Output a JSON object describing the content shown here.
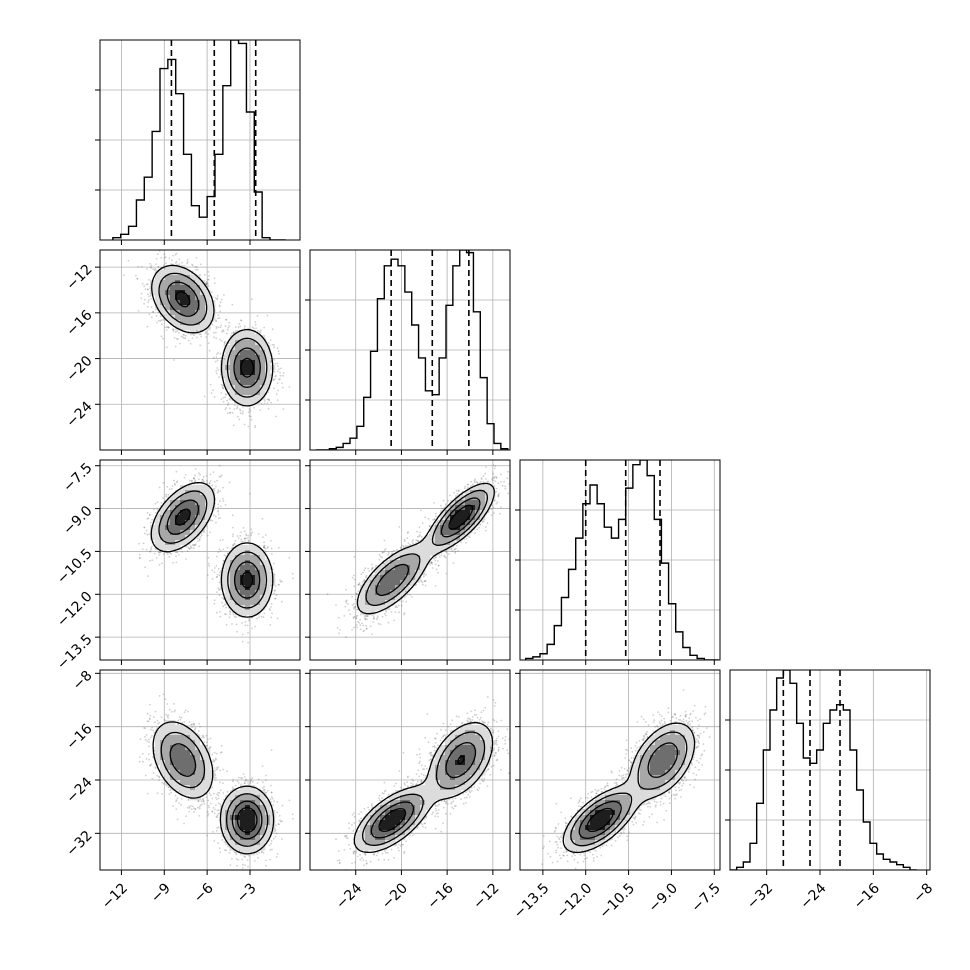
{
  "chart_data": {
    "type": "corner",
    "parameters": [
      {
        "range": [
          -13.5,
          0.5
        ],
        "ticks": [
          -12,
          -9,
          -6,
          -3
        ],
        "tick_labels": [
          "−12",
          "−9",
          "−6",
          "−3"
        ],
        "quantiles": [
          -8.5,
          -5.5,
          -2.6
        ]
      },
      {
        "range": [
          -28.0,
          -10.5
        ],
        "ticks": [
          -24,
          -20,
          -16,
          -12
        ],
        "tick_labels": [
          "−24",
          "−20",
          "−16",
          "−12"
        ],
        "quantiles": [
          -20.9,
          -17.3,
          -14.1
        ]
      },
      {
        "range": [
          -14.3,
          -7.3
        ],
        "ticks": [
          -13.5,
          -12.0,
          -10.5,
          -9.0,
          -7.5
        ],
        "tick_labels": [
          "−13.5",
          "−12.0",
          "−10.5",
          "−9.0",
          "−7.5"
        ],
        "quantiles": [
          -12.0,
          -10.6,
          -9.4
        ]
      },
      {
        "range": [
          -37.5,
          -7.5
        ],
        "ticks": [
          -32,
          -24,
          -16,
          -8
        ],
        "tick_labels": [
          "−32",
          "−24",
          "−16",
          "−8"
        ],
        "quantiles": [
          -29.5,
          -25.5,
          -21.0
        ]
      }
    ],
    "modes": [
      {
        "weight": 0.5,
        "mean": [
          -7.7,
          -14.8,
          -9.3,
          -21.0
        ],
        "cov": [
          [
            1.2,
            -0.55,
            0.33,
            -1.2
          ],
          [
            -0.55,
            2.2,
            0.66,
            2.0
          ],
          [
            0.33,
            0.66,
            0.36,
            0.8
          ],
          [
            -1.2,
            2.0,
            0.8,
            9.0
          ]
        ]
      },
      {
        "weight": 0.5,
        "mean": [
          -3.2,
          -20.8,
          -11.5,
          -30.0
        ],
        "cov": [
          [
            0.8,
            0.0,
            0.0,
            0.0
          ],
          [
            0.0,
            2.8,
            0.74,
            2.6
          ],
          [
            0.0,
            0.74,
            0.42,
            1.0
          ],
          [
            0.0,
            2.6,
            1.0,
            6.0
          ]
        ]
      }
    ],
    "histograms": [
      {
        "param": 0,
        "bins": [
          -12.6,
          -12.05,
          -11.5,
          -10.95,
          -10.4,
          -9.85,
          -9.3,
          -8.75,
          -8.2,
          -7.65,
          -7.1,
          -6.55,
          -6.0,
          -5.45,
          -4.9,
          -4.35,
          -3.8,
          -3.25,
          -2.7,
          -2.15,
          -1.6,
          -1.05,
          -0.5
        ],
        "counts": [
          2,
          5,
          12,
          35,
          55,
          95,
          150,
          158,
          128,
          75,
          30,
          20,
          38,
          75,
          135,
          175,
          172,
          112,
          42,
          2,
          0,
          0
        ]
      },
      {
        "param": 1,
        "bins": [
          -27.5,
          -26.9,
          -26.3,
          -25.7,
          -25.1,
          -24.5,
          -23.9,
          -23.3,
          -22.7,
          -22.1,
          -21.5,
          -20.9,
          -20.3,
          -19.7,
          -19.1,
          -18.5,
          -17.9,
          -17.3,
          -16.7,
          -16.1,
          -15.5,
          -14.9,
          -14.3,
          -13.7,
          -13.1,
          -12.5,
          -11.9,
          -11.3,
          -10.7
        ],
        "counts": [
          0,
          0,
          1,
          2,
          5,
          9,
          18,
          40,
          75,
          115,
          140,
          145,
          140,
          120,
          95,
          70,
          45,
          42,
          70,
          110,
          140,
          152,
          150,
          105,
          55,
          20,
          5,
          1
        ]
      },
      {
        "param": 2,
        "bins": [
          -14.1,
          -13.85,
          -13.6,
          -13.35,
          -13.1,
          -12.85,
          -12.6,
          -12.35,
          -12.1,
          -11.85,
          -11.6,
          -11.35,
          -11.1,
          -10.85,
          -10.6,
          -10.35,
          -10.1,
          -9.85,
          -9.6,
          -9.35,
          -9.1,
          -8.85,
          -8.6,
          -8.35,
          -8.1,
          -7.85,
          -7.6,
          -7.35
        ],
        "counts": [
          1,
          2,
          4,
          10,
          22,
          40,
          58,
          78,
          100,
          112,
          100,
          85,
          78,
          90,
          110,
          125,
          128,
          118,
          90,
          62,
          36,
          18,
          8,
          3,
          1,
          0,
          0
        ]
      },
      {
        "param": 3,
        "bins": [
          -37.5,
          -36.5,
          -35.5,
          -34.5,
          -33.5,
          -32.5,
          -31.5,
          -30.5,
          -29.5,
          -28.5,
          -27.5,
          -26.5,
          -25.5,
          -24.5,
          -23.5,
          -22.5,
          -21.5,
          -20.5,
          -19.5,
          -18.5,
          -17.5,
          -16.5,
          -15.5,
          -14.5,
          -13.5,
          -12.5,
          -11.5,
          -10.5,
          -9.5
        ],
        "counts": [
          0,
          1,
          3,
          10,
          25,
          45,
          60,
          72,
          75,
          70,
          55,
          42,
          40,
          45,
          55,
          60,
          62,
          60,
          45,
          30,
          18,
          10,
          6,
          4,
          3,
          2,
          1,
          0
        ]
      }
    ],
    "grid": true
  }
}
